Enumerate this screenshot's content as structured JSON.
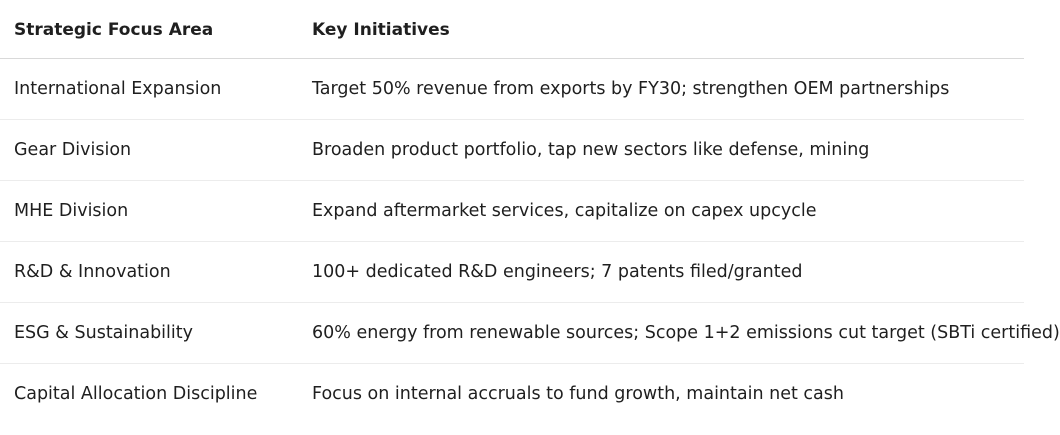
{
  "table": {
    "headers": [
      "Strategic Focus Area",
      "Key Initiatives"
    ],
    "rows": [
      [
        "International Expansion",
        "Target 50% revenue from exports by FY30; strengthen OEM partnerships"
      ],
      [
        "Gear Division",
        "Broaden product portfolio, tap new sectors like defense, mining"
      ],
      [
        "MHE Division",
        "Expand aftermarket services, capitalize on capex upcycle"
      ],
      [
        "R&D & Innovation",
        "100+ dedicated R&D engineers; 7 patents filed/granted"
      ],
      [
        "ESG & Sustainability",
        "60% energy from renewable sources; Scope 1+2 emissions cut target (SBTi certified)"
      ],
      [
        "Capital Allocation Discipline",
        "Focus on internal accruals to fund growth, maintain net cash"
      ]
    ]
  }
}
